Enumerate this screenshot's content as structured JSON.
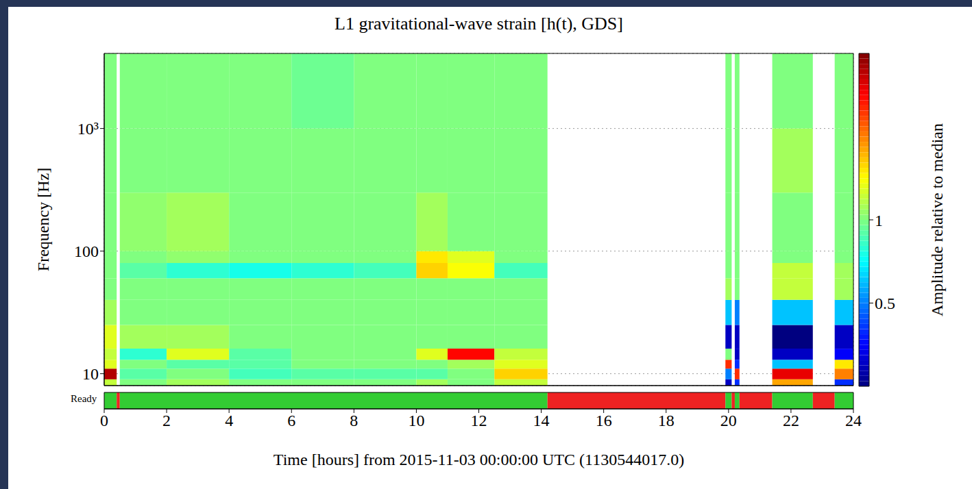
{
  "chart_data": {
    "type": "heatmap",
    "title": "L1 gravitational-wave strain [h(t), GDS]",
    "xlabel": "Time [hours] from 2015-11-03 00:00:00 UTC (1130544017.0)",
    "ylabel": "Frequency [Hz]",
    "xlim": [
      0,
      24
    ],
    "xticks": [
      0,
      2,
      4,
      6,
      8,
      10,
      12,
      14,
      16,
      18,
      20,
      22,
      24
    ],
    "ylim": [
      8,
      4096
    ],
    "yticks": [
      10,
      100,
      {
        "value": 1000,
        "label": "10³"
      }
    ],
    "log": "y",
    "grid": true,
    "x_edges": [
      0,
      0.4,
      0.5,
      2,
      4,
      6,
      8,
      10,
      11,
      12.5,
      14.2,
      19.9,
      20.1,
      20.2,
      20.35,
      21.4,
      22.7,
      23.4,
      24
    ],
    "y_edges": [
      8,
      9,
      11,
      13,
      16,
      25,
      40,
      60,
      80,
      100,
      300,
      1000,
      4096
    ],
    "cells": [
      [
        1.2,
        null,
        1.0,
        1.1,
        1.0,
        1.0,
        1.0,
        1.1,
        1.0,
        1.2,
        null,
        0.3,
        null,
        0.4,
        null,
        1.8,
        null,
        0.4
      ],
      [
        3.5,
        null,
        0.9,
        1.0,
        0.85,
        0.9,
        0.9,
        0.9,
        1.0,
        1.6,
        null,
        0.5,
        null,
        2.5,
        null,
        3.0,
        null,
        2.0
      ],
      [
        1.3,
        null,
        1.0,
        0.9,
        0.9,
        1.0,
        1.0,
        1.0,
        1.1,
        1.3,
        null,
        2.5,
        null,
        0.4,
        null,
        0.6,
        null,
        1.5
      ],
      [
        1.2,
        null,
        0.8,
        1.3,
        0.9,
        1.0,
        1.0,
        1.3,
        2.8,
        1.2,
        null,
        1.0,
        null,
        0.3,
        null,
        0.3,
        null,
        0.35
      ],
      [
        1.3,
        null,
        1.1,
        1.1,
        1.0,
        1.0,
        1.0,
        1.0,
        1.0,
        1.0,
        null,
        0.3,
        null,
        0.3,
        null,
        0.25,
        null,
        0.3
      ],
      [
        1.1,
        null,
        1.0,
        1.0,
        1.0,
        1.0,
        1.0,
        1.0,
        1.0,
        1.0,
        null,
        0.6,
        null,
        0.5,
        null,
        0.6,
        null,
        0.6
      ],
      [
        1.0,
        null,
        1.0,
        1.0,
        1.0,
        1.0,
        1.0,
        1.0,
        1.0,
        1.0,
        null,
        1.1,
        null,
        1.0,
        null,
        1.2,
        null,
        1.1
      ],
      [
        1.0,
        null,
        0.9,
        0.8,
        0.75,
        0.8,
        0.85,
        1.6,
        1.4,
        0.85,
        null,
        1.0,
        null,
        1.0,
        null,
        1.2,
        null,
        1.1
      ],
      [
        1.0,
        null,
        1.0,
        1.05,
        1.0,
        1.0,
        1.0,
        1.5,
        1.3,
        1.0,
        null,
        1.0,
        null,
        1.0,
        null,
        1.0,
        null,
        1.0
      ],
      [
        1.0,
        null,
        1.05,
        1.1,
        1.0,
        1.0,
        1.0,
        1.1,
        1.0,
        1.0,
        null,
        1.0,
        null,
        1.0,
        null,
        1.0,
        null,
        1.0
      ],
      [
        1.0,
        null,
        1.0,
        1.0,
        1.0,
        1.0,
        1.0,
        1.0,
        1.0,
        1.0,
        null,
        1.0,
        null,
        1.0,
        null,
        1.1,
        null,
        1.0
      ],
      [
        1.0,
        null,
        1.0,
        1.0,
        1.0,
        0.95,
        1.0,
        1.0,
        1.0,
        1.0,
        null,
        1.0,
        null,
        1.0,
        null,
        1.0,
        null,
        1.0
      ]
    ],
    "color_label": "Amplitude relative to median",
    "color_range": [
      0.25,
      4
    ],
    "color_ticks": [
      0.5,
      1
    ],
    "ready_bar": {
      "label": "Ready",
      "start": [
        0,
        0.4,
        0.5,
        14.2,
        19.9,
        20.1,
        20.2,
        20.35,
        21.4,
        22.7,
        23.4
      ],
      "end": [
        0.4,
        0.5,
        14.2,
        19.9,
        20.1,
        20.2,
        20.35,
        21.4,
        22.7,
        23.4,
        24
      ],
      "colors": [
        "#33cc33",
        "#ee2222",
        "#33cc33",
        "#ee2222",
        "#33cc33",
        "#ee2222",
        "#33cc33",
        "#ee2222",
        "#33cc33",
        "#ee2222",
        "#33cc33"
      ]
    }
  }
}
